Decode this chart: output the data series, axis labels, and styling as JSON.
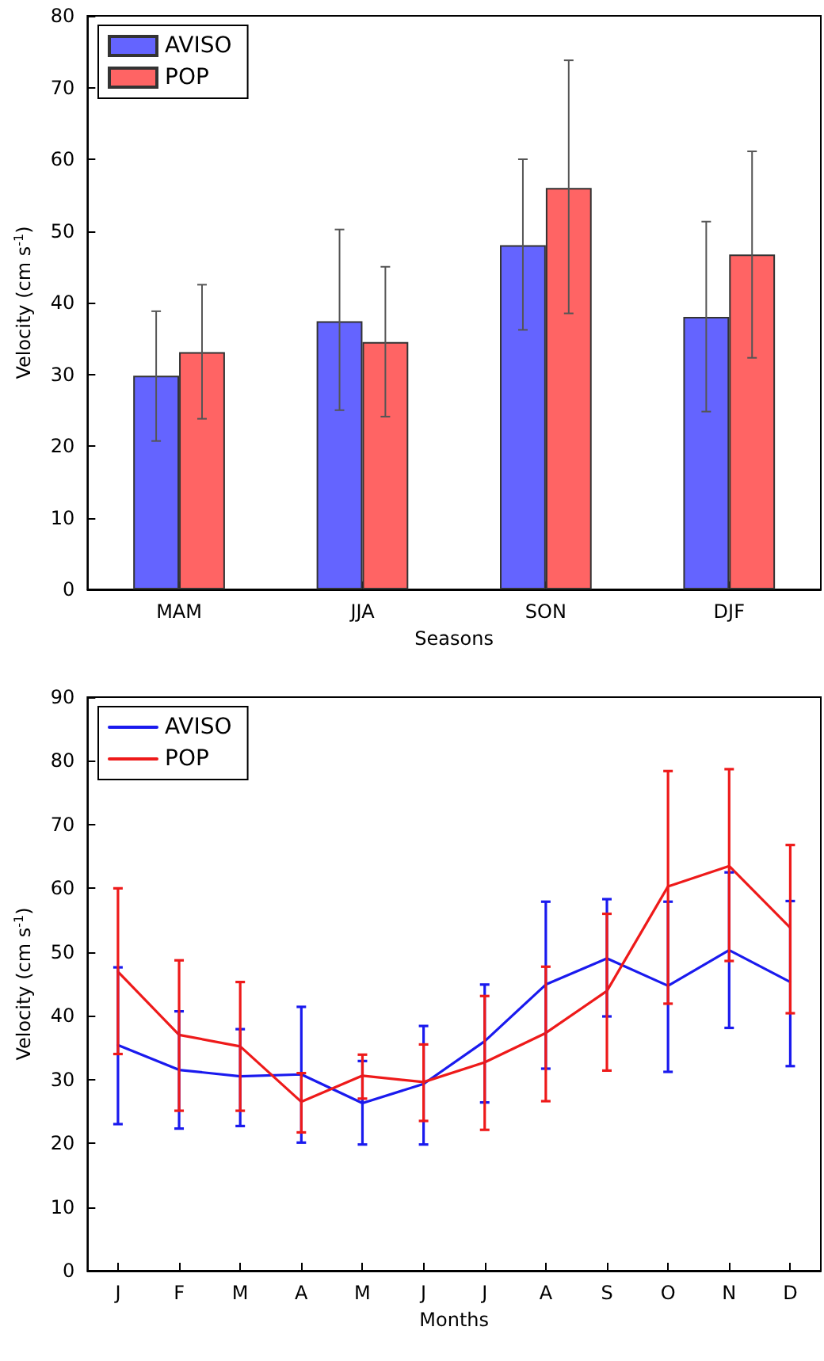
{
  "chart_data": [
    {
      "type": "bar",
      "xlabel": "Seasons",
      "ylabel": "Velocity (cm s$^{-1}$)",
      "categories": [
        "MAM",
        "JJA",
        "SON",
        "DJF"
      ],
      "series": [
        {
          "name": "AVISO",
          "color": "#6464ff",
          "values": [
            29.8,
            37.4,
            48.0,
            38.0
          ],
          "errors": [
            [
              20.7,
              38.8
            ],
            [
              25.0,
              50.2
            ],
            [
              36.2,
              60.0
            ],
            [
              24.8,
              51.3
            ]
          ]
        },
        {
          "name": "POP",
          "color": "#ff6464",
          "values": [
            33.1,
            34.5,
            56.0,
            46.7
          ],
          "errors": [
            [
              23.8,
              42.5
            ],
            [
              24.1,
              45.0
            ],
            [
              38.5,
              73.8
            ],
            [
              32.3,
              61.1
            ]
          ]
        }
      ],
      "ylim": [
        0,
        80
      ],
      "yticks": [
        0,
        10,
        20,
        30,
        40,
        50,
        60,
        70,
        80
      ],
      "legend": "top left"
    },
    {
      "type": "line",
      "xlabel": "Months",
      "ylabel": "Velocity (cm s$^{-1}$)",
      "categories": [
        "J",
        "F",
        "M",
        "A",
        "M",
        "J",
        "J",
        "A",
        "S",
        "O",
        "N",
        "D"
      ],
      "series": [
        {
          "name": "AVISO",
          "color": "#1a1aee",
          "values": [
            35.4,
            31.5,
            30.5,
            30.8,
            26.3,
            29.3,
            36.0,
            44.9,
            49.0,
            44.7,
            50.3,
            45.3
          ],
          "errors": [
            [
              23.0,
              47.6
            ],
            [
              22.3,
              40.7
            ],
            [
              22.7,
              37.9
            ],
            [
              20.1,
              41.4
            ],
            [
              19.8,
              32.9
            ],
            [
              19.8,
              38.4
            ],
            [
              26.4,
              44.9
            ],
            [
              31.7,
              57.9
            ],
            [
              39.9,
              58.3
            ],
            [
              31.2,
              57.9
            ],
            [
              38.1,
              62.5
            ],
            [
              32.1,
              58.0
            ]
          ]
        },
        {
          "name": "POP",
          "color": "#ee1a1a",
          "values": [
            46.9,
            37.0,
            35.2,
            26.5,
            30.6,
            29.6,
            32.7,
            37.3,
            43.9,
            60.3,
            63.5,
            53.8
          ],
          "errors": [
            [
              34.0,
              60.0
            ],
            [
              25.1,
              48.7
            ],
            [
              25.1,
              45.3
            ],
            [
              21.7,
              31.0
            ],
            [
              27.0,
              33.9
            ],
            [
              23.5,
              35.5
            ],
            [
              22.1,
              43.1
            ],
            [
              26.6,
              47.7
            ],
            [
              31.4,
              56.0
            ],
            [
              41.9,
              78.4
            ],
            [
              48.6,
              78.7
            ],
            [
              40.4,
              66.8
            ]
          ]
        }
      ],
      "ylim": [
        0,
        90
      ],
      "yticks": [
        0,
        10,
        20,
        30,
        40,
        50,
        60,
        70,
        80,
        90
      ],
      "legend": "top left"
    }
  ]
}
